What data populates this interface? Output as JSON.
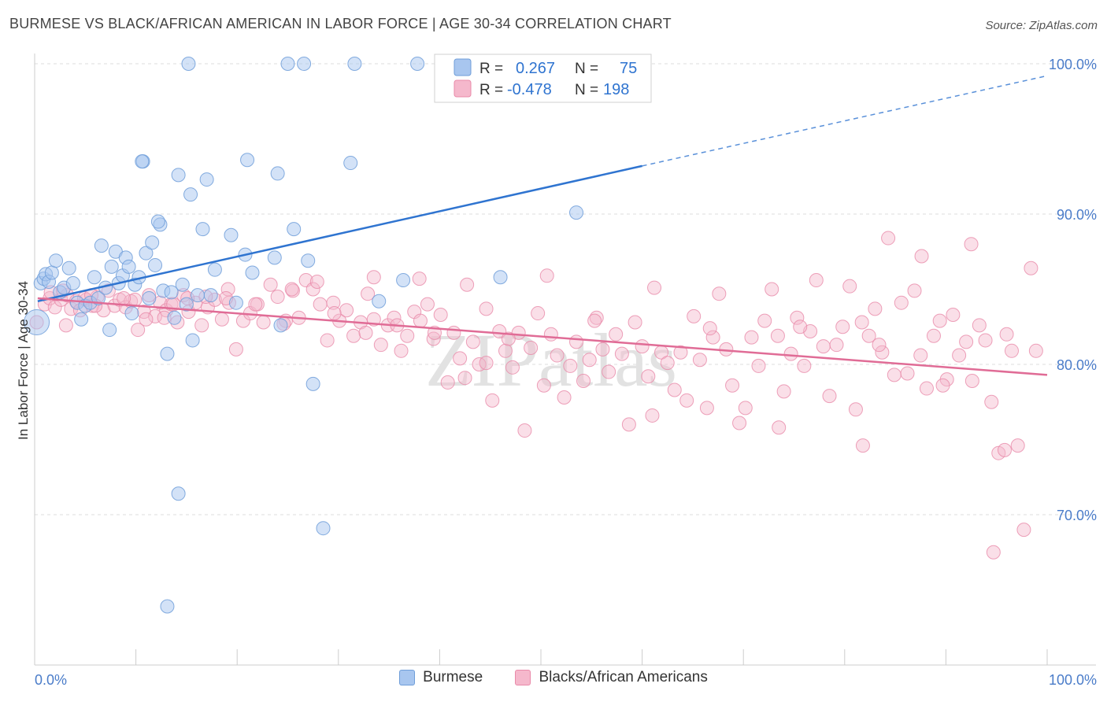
{
  "title": "BURMESE VS BLACK/AFRICAN AMERICAN IN LABOR FORCE | AGE 30-34 CORRELATION CHART",
  "source": "Source: ZipAtlas.com",
  "watermark": "ZIPatlas",
  "colors": {
    "burmese_fill": "#a8c6ef",
    "burmese_stroke": "#6f9ed9",
    "burmese_line": "#2f74d0",
    "black_fill": "#f5b8cc",
    "black_stroke": "#e98aa9",
    "black_line": "#e06c96",
    "axis_text_blue": "#4a7cc9",
    "grid": "#dddddd"
  },
  "stats": {
    "burmese": {
      "r_label": "R =",
      "r_value": "0.267",
      "n_label": "N =",
      "n_value": "75"
    },
    "black": {
      "r_label": "R =",
      "r_value": "-0.478",
      "n_label": "N =",
      "n_value": "198"
    }
  },
  "legend": {
    "burmese_label": "Burmese",
    "black_label": "Blacks/African Americans"
  },
  "chart_data": {
    "type": "scatter",
    "title": "BURMESE VS BLACK/AFRICAN AMERICAN IN LABOR FORCE | AGE 30-34 CORRELATION CHART",
    "xlabel": "",
    "ylabel": "In Labor Force | Age 30-34",
    "xlim": [
      0,
      100
    ],
    "ylim": [
      60,
      101
    ],
    "x_ticks": [
      "0.0%",
      "100.0%"
    ],
    "y_ticks": [
      {
        "value": 100,
        "label": "100.0%"
      },
      {
        "value": 90,
        "label": "90.0%"
      },
      {
        "value": 80,
        "label": "80.0%"
      },
      {
        "value": 70,
        "label": "70.0%"
      }
    ],
    "legend_position": "top-center",
    "grid": true,
    "series": [
      {
        "name": "Burmese",
        "color": "#a8c6ef",
        "trend": {
          "x": [
            0.3,
            60
          ],
          "y": [
            84.2,
            93.2
          ],
          "dashed_to": [
            100,
            99.2
          ]
        },
        "points": [
          [
            0.2,
            82.8
          ],
          [
            0.6,
            85.4
          ],
          [
            0.9,
            85.7
          ],
          [
            1.1,
            86.0
          ],
          [
            1.4,
            85.5
          ],
          [
            1.7,
            86.1
          ],
          [
            2.1,
            86.9
          ],
          [
            2.5,
            84.8
          ],
          [
            2.9,
            85.1
          ],
          [
            3.4,
            86.4
          ],
          [
            3.8,
            85.4
          ],
          [
            4.2,
            84.1
          ],
          [
            4.6,
            83.0
          ],
          [
            5.0,
            83.9
          ],
          [
            5.5,
            84.1
          ],
          [
            5.9,
            85.8
          ],
          [
            6.3,
            84.4
          ],
          [
            6.6,
            87.9
          ],
          [
            7.0,
            85.1
          ],
          [
            7.4,
            82.3
          ],
          [
            7.6,
            86.5
          ],
          [
            8.0,
            87.5
          ],
          [
            8.3,
            85.4
          ],
          [
            8.7,
            85.9
          ],
          [
            9.0,
            87.1
          ],
          [
            9.3,
            86.5
          ],
          [
            9.6,
            83.4
          ],
          [
            9.9,
            85.3
          ],
          [
            10.3,
            85.8
          ],
          [
            10.7,
            93.5
          ],
          [
            11.0,
            87.4
          ],
          [
            11.3,
            84.4
          ],
          [
            11.6,
            88.1
          ],
          [
            11.9,
            86.6
          ],
          [
            12.4,
            89.3
          ],
          [
            12.7,
            84.9
          ],
          [
            13.1,
            80.7
          ],
          [
            13.5,
            84.8
          ],
          [
            13.8,
            83.1
          ],
          [
            14.2,
            92.6
          ],
          [
            14.6,
            85.3
          ],
          [
            15.0,
            84.0
          ],
          [
            15.6,
            81.6
          ],
          [
            16.1,
            84.6
          ],
          [
            16.6,
            89.0
          ],
          [
            17.0,
            92.3
          ],
          [
            17.4,
            84.6
          ],
          [
            19.4,
            88.6
          ],
          [
            20.8,
            87.3
          ],
          [
            21.5,
            86.1
          ],
          [
            23.7,
            87.1
          ],
          [
            24.3,
            82.6
          ],
          [
            25.6,
            89.0
          ],
          [
            27.0,
            86.9
          ],
          [
            27.5,
            78.7
          ],
          [
            28.5,
            69.1
          ],
          [
            31.2,
            93.4
          ],
          [
            34.0,
            84.2
          ],
          [
            36.4,
            85.6
          ],
          [
            46.0,
            85.8
          ],
          [
            53.5,
            90.1
          ],
          [
            14.2,
            71.4
          ],
          [
            13.1,
            63.9
          ],
          [
            15.4,
            91.3
          ],
          [
            21.0,
            93.6
          ],
          [
            24.0,
            92.7
          ],
          [
            10.6,
            93.5
          ],
          [
            15.2,
            100.0
          ],
          [
            25.0,
            100.0
          ],
          [
            26.6,
            100.0
          ],
          [
            31.6,
            100.0
          ],
          [
            37.8,
            100.0
          ],
          [
            12.2,
            89.5
          ],
          [
            19.9,
            84.1
          ],
          [
            17.8,
            86.3
          ]
        ]
      },
      {
        "name": "Blacks/African Americans",
        "color": "#f5b8cc",
        "trend": {
          "x": [
            0.3,
            100
          ],
          "y": [
            84.4,
            79.3
          ]
        },
        "points": [
          [
            0.2,
            82.8
          ],
          [
            1.0,
            84.0
          ],
          [
            1.5,
            84.4
          ],
          [
            2.0,
            83.8
          ],
          [
            2.6,
            84.3
          ],
          [
            3.2,
            84.6
          ],
          [
            3.6,
            83.7
          ],
          [
            4.1,
            84.2
          ],
          [
            4.5,
            83.6
          ],
          [
            5.1,
            84.3
          ],
          [
            5.7,
            83.9
          ],
          [
            6.2,
            84.5
          ],
          [
            6.8,
            83.6
          ],
          [
            7.3,
            84.9
          ],
          [
            7.9,
            83.9
          ],
          [
            8.4,
            84.3
          ],
          [
            9.0,
            83.8
          ],
          [
            9.5,
            84.2
          ],
          [
            10.2,
            82.3
          ],
          [
            10.8,
            83.5
          ],
          [
            11.3,
            84.6
          ],
          [
            11.9,
            83.2
          ],
          [
            12.4,
            84.1
          ],
          [
            13.0,
            83.6
          ],
          [
            13.5,
            84.0
          ],
          [
            14.1,
            82.8
          ],
          [
            14.7,
            84.6
          ],
          [
            15.2,
            83.5
          ],
          [
            15.9,
            84.1
          ],
          [
            16.5,
            82.6
          ],
          [
            17.1,
            83.8
          ],
          [
            17.8,
            84.3
          ],
          [
            18.5,
            83.0
          ],
          [
            19.2,
            84.1
          ],
          [
            19.9,
            81.0
          ],
          [
            20.6,
            82.9
          ],
          [
            21.3,
            83.4
          ],
          [
            22.0,
            84.0
          ],
          [
            22.6,
            82.8
          ],
          [
            23.3,
            85.3
          ],
          [
            24.0,
            84.5
          ],
          [
            24.8,
            82.9
          ],
          [
            25.5,
            84.9
          ],
          [
            26.1,
            83.1
          ],
          [
            26.8,
            85.6
          ],
          [
            27.5,
            85.0
          ],
          [
            28.2,
            84.0
          ],
          [
            28.9,
            81.6
          ],
          [
            29.5,
            84.1
          ],
          [
            30.1,
            82.9
          ],
          [
            30.8,
            83.6
          ],
          [
            31.5,
            81.9
          ],
          [
            32.2,
            82.8
          ],
          [
            32.9,
            84.7
          ],
          [
            33.5,
            83.0
          ],
          [
            34.2,
            81.3
          ],
          [
            34.9,
            82.6
          ],
          [
            35.5,
            83.1
          ],
          [
            36.2,
            80.9
          ],
          [
            36.8,
            81.9
          ],
          [
            37.5,
            83.5
          ],
          [
            38.1,
            82.9
          ],
          [
            38.8,
            84.0
          ],
          [
            39.4,
            81.7
          ],
          [
            40.1,
            83.3
          ],
          [
            40.8,
            78.8
          ],
          [
            41.4,
            82.1
          ],
          [
            42.0,
            80.4
          ],
          [
            42.7,
            85.3
          ],
          [
            43.3,
            81.5
          ],
          [
            43.9,
            80.0
          ],
          [
            44.6,
            83.7
          ],
          [
            45.2,
            77.6
          ],
          [
            45.9,
            82.2
          ],
          [
            46.5,
            80.9
          ],
          [
            47.2,
            79.8
          ],
          [
            47.8,
            82.1
          ],
          [
            48.4,
            75.6
          ],
          [
            49.0,
            81.1
          ],
          [
            49.7,
            83.4
          ],
          [
            50.3,
            78.6
          ],
          [
            51.0,
            82.0
          ],
          [
            51.6,
            80.6
          ],
          [
            52.3,
            77.8
          ],
          [
            52.9,
            79.9
          ],
          [
            53.5,
            81.5
          ],
          [
            54.2,
            78.9
          ],
          [
            54.8,
            80.3
          ],
          [
            55.5,
            83.1
          ],
          [
            56.1,
            81.0
          ],
          [
            56.7,
            79.5
          ],
          [
            57.4,
            82.0
          ],
          [
            58.0,
            80.7
          ],
          [
            58.7,
            76.0
          ],
          [
            59.3,
            82.8
          ],
          [
            60.0,
            81.2
          ],
          [
            60.6,
            79.2
          ],
          [
            61.2,
            85.1
          ],
          [
            61.9,
            80.8
          ],
          [
            62.5,
            80.1
          ],
          [
            63.2,
            78.3
          ],
          [
            63.8,
            80.8
          ],
          [
            64.4,
            77.6
          ],
          [
            65.1,
            83.2
          ],
          [
            65.7,
            80.3
          ],
          [
            66.4,
            77.1
          ],
          [
            67.0,
            81.8
          ],
          [
            67.6,
            84.7
          ],
          [
            68.3,
            81.0
          ],
          [
            68.9,
            78.6
          ],
          [
            69.6,
            76.1
          ],
          [
            70.2,
            77.1
          ],
          [
            70.8,
            81.8
          ],
          [
            71.5,
            79.9
          ],
          [
            72.1,
            82.9
          ],
          [
            72.8,
            85.0
          ],
          [
            73.4,
            81.9
          ],
          [
            74.0,
            78.2
          ],
          [
            74.7,
            80.7
          ],
          [
            75.3,
            83.1
          ],
          [
            76.0,
            79.9
          ],
          [
            76.6,
            82.2
          ],
          [
            77.2,
            85.6
          ],
          [
            77.9,
            81.2
          ],
          [
            78.5,
            77.9
          ],
          [
            79.2,
            81.3
          ],
          [
            79.8,
            82.5
          ],
          [
            80.5,
            85.2
          ],
          [
            81.1,
            77.0
          ],
          [
            81.7,
            82.8
          ],
          [
            82.4,
            81.9
          ],
          [
            83.0,
            83.7
          ],
          [
            83.7,
            80.8
          ],
          [
            84.3,
            88.4
          ],
          [
            84.9,
            79.3
          ],
          [
            85.6,
            84.1
          ],
          [
            86.2,
            79.4
          ],
          [
            86.9,
            84.9
          ],
          [
            87.5,
            80.6
          ],
          [
            88.1,
            78.4
          ],
          [
            88.8,
            81.9
          ],
          [
            89.4,
            82.9
          ],
          [
            90.1,
            79.0
          ],
          [
            90.7,
            83.3
          ],
          [
            91.3,
            80.6
          ],
          [
            92.0,
            81.5
          ],
          [
            92.6,
            78.9
          ],
          [
            93.3,
            82.6
          ],
          [
            93.9,
            81.6
          ],
          [
            94.5,
            77.5
          ],
          [
            95.2,
            74.1
          ],
          [
            95.8,
            74.3
          ],
          [
            96.5,
            80.9
          ],
          [
            97.1,
            74.6
          ],
          [
            97.7,
            69.0
          ],
          [
            98.4,
            86.4
          ],
          [
            98.9,
            80.9
          ],
          [
            94.7,
            67.5
          ],
          [
            92.5,
            88.0
          ],
          [
            87.6,
            87.2
          ],
          [
            81.8,
            74.6
          ],
          [
            73.5,
            75.8
          ],
          [
            61.0,
            76.6
          ],
          [
            50.6,
            85.9
          ],
          [
            44.6,
            80.1
          ],
          [
            38.0,
            85.7
          ],
          [
            33.5,
            85.8
          ],
          [
            27.9,
            85.5
          ],
          [
            24.6,
            82.7
          ],
          [
            19.1,
            85.0
          ],
          [
            15.1,
            84.4
          ],
          [
            12.8,
            83.1
          ],
          [
            9.9,
            84.3
          ],
          [
            6.0,
            83.9
          ],
          [
            3.1,
            82.6
          ],
          [
            1.6,
            84.8
          ],
          [
            2.8,
            84.9
          ],
          [
            4.9,
            84.4
          ],
          [
            5.6,
            84.6
          ],
          [
            8.8,
            84.4
          ],
          [
            11.0,
            83.0
          ],
          [
            13.7,
            84.0
          ],
          [
            16.9,
            84.5
          ],
          [
            18.9,
            84.4
          ],
          [
            21.8,
            84.0
          ],
          [
            25.4,
            85.0
          ],
          [
            29.6,
            83.4
          ],
          [
            32.7,
            82.1
          ],
          [
            35.8,
            82.6
          ],
          [
            39.5,
            82.1
          ],
          [
            42.5,
            79.1
          ],
          [
            46.8,
            81.7
          ],
          [
            55.3,
            82.9
          ],
          [
            66.7,
            82.4
          ],
          [
            75.6,
            82.5
          ],
          [
            83.4,
            81.3
          ],
          [
            89.7,
            78.6
          ],
          [
            96.0,
            82.0
          ]
        ]
      }
    ]
  }
}
